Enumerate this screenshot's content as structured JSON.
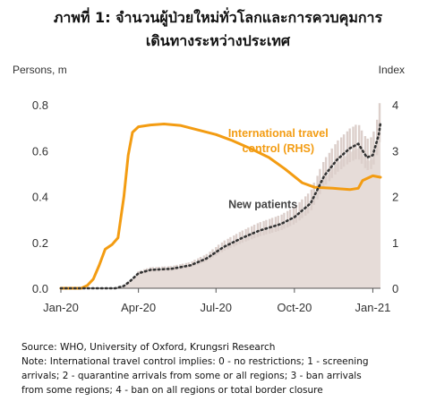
{
  "title_line1": "ภาพที่ 1: จำนวนผู้ป่วยใหม่ทั่วโลกและการควบคุมการ",
  "title_line2": "เดินทางระหว่างประเทศ",
  "notes": {
    "source": "Source: WHO, University of Oxford, Krungsri Research",
    "note_lines": [
      "Note: International travel control implies: 0 - no restrictions; 1 - screening",
      "arrivals; 2 - quarantine arrivals from some or all regions; 3 - ban arrivals",
      "from some regions; 4 - ban on all regions or total border closure"
    ]
  },
  "colors": {
    "travel_line": "#F39C12",
    "patients_fill": "#E6DCD8",
    "patients_spikes": "#DCCFCB",
    "patients_trend": "#333333",
    "axis": "#555555"
  },
  "chart_data": {
    "type": "line",
    "x_tick_labels": [
      "Jan-20",
      "Apr-20",
      "Jul-20",
      "Oct-20",
      "Jan-21"
    ],
    "x_tick_dates": [
      "2020-01-01",
      "2020-04-01",
      "2020-07-01",
      "2020-10-01",
      "2021-01-01"
    ],
    "xlim": [
      "2020-01-01",
      "2021-01-10"
    ],
    "left_axis": {
      "label": "Persons, m",
      "ylim": [
        0,
        0.8
      ],
      "ticks": [
        "0.0",
        "0.2",
        "0.4",
        "0.6",
        "0.8"
      ]
    },
    "right_axis": {
      "label": "Index",
      "ylim": [
        0,
        4
      ],
      "ticks": [
        "0",
        "1",
        "2",
        "3",
        "4"
      ]
    },
    "series": [
      {
        "name": "International travel control (RHS)",
        "axis": "right",
        "style": "line",
        "points": [
          [
            "2020-01-01",
            0.0
          ],
          [
            "2020-01-25",
            0.0
          ],
          [
            "2020-02-01",
            0.06
          ],
          [
            "2020-02-08",
            0.2
          ],
          [
            "2020-02-15",
            0.5
          ],
          [
            "2020-02-22",
            0.85
          ],
          [
            "2020-03-01",
            0.95
          ],
          [
            "2020-03-08",
            1.1
          ],
          [
            "2020-03-15",
            2.0
          ],
          [
            "2020-03-20",
            2.9
          ],
          [
            "2020-03-25",
            3.4
          ],
          [
            "2020-04-01",
            3.52
          ],
          [
            "2020-04-15",
            3.56
          ],
          [
            "2020-05-01",
            3.58
          ],
          [
            "2020-05-20",
            3.55
          ],
          [
            "2020-06-10",
            3.45
          ],
          [
            "2020-07-01",
            3.35
          ],
          [
            "2020-07-20",
            3.22
          ],
          [
            "2020-08-10",
            3.05
          ],
          [
            "2020-09-01",
            2.85
          ],
          [
            "2020-09-20",
            2.6
          ],
          [
            "2020-10-10",
            2.3
          ],
          [
            "2020-10-25",
            2.2
          ],
          [
            "2020-11-15",
            2.18
          ],
          [
            "2020-12-05",
            2.15
          ],
          [
            "2020-12-15",
            2.18
          ],
          [
            "2020-12-20",
            2.35
          ],
          [
            "2021-01-01",
            2.45
          ],
          [
            "2021-01-10",
            2.42
          ]
        ]
      },
      {
        "name": "New patients",
        "axis": "left",
        "style": "dotted line over daily area",
        "points": [
          [
            "2020-01-01",
            0.0
          ],
          [
            "2020-03-05",
            0.0
          ],
          [
            "2020-03-15",
            0.01
          ],
          [
            "2020-03-22",
            0.03
          ],
          [
            "2020-04-01",
            0.065
          ],
          [
            "2020-04-15",
            0.08
          ],
          [
            "2020-05-10",
            0.085
          ],
          [
            "2020-06-01",
            0.1
          ],
          [
            "2020-06-20",
            0.13
          ],
          [
            "2020-07-10",
            0.18
          ],
          [
            "2020-08-01",
            0.22
          ],
          [
            "2020-08-20",
            0.25
          ],
          [
            "2020-09-15",
            0.28
          ],
          [
            "2020-10-01",
            0.31
          ],
          [
            "2020-10-20",
            0.37
          ],
          [
            "2020-11-05",
            0.49
          ],
          [
            "2020-11-20",
            0.56
          ],
          [
            "2020-12-05",
            0.61
          ],
          [
            "2020-12-15",
            0.63
          ],
          [
            "2020-12-25",
            0.57
          ],
          [
            "2021-01-01",
            0.58
          ],
          [
            "2021-01-08",
            0.67
          ],
          [
            "2021-01-10",
            0.72
          ]
        ]
      }
    ],
    "annotations": [
      {
        "text_lines": [
          "International travel",
          "control (RHS)"
        ],
        "color": "#F39C12",
        "anchor": [
          "2020-09-12",
          3.3
        ],
        "axis": "right"
      },
      {
        "text_lines": [
          "New patients"
        ],
        "color": "#444444",
        "anchor": [
          "2020-08-25",
          0.35
        ],
        "axis": "left"
      }
    ],
    "grid": false,
    "legend": "none"
  }
}
